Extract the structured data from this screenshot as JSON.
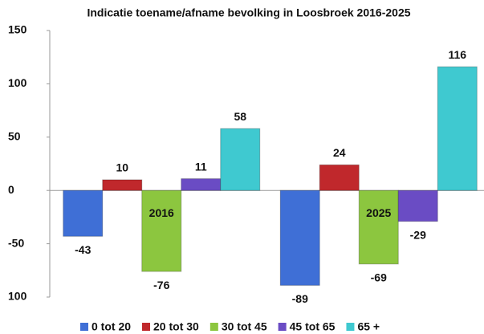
{
  "chart_data": {
    "type": "bar",
    "title": "Indicatie toename/afname bevolking in Loosbroek 2016-2025",
    "categories": [
      "2016",
      "2025"
    ],
    "series": [
      {
        "name": "0 tot 20",
        "color": "#3f6fd6",
        "values": [
          -43,
          -89
        ]
      },
      {
        "name": "20 tot 30",
        "color": "#c0282c",
        "values": [
          10,
          24
        ]
      },
      {
        "name": "30 tot 45",
        "color": "#8cc63f",
        "values": [
          -76,
          -69
        ]
      },
      {
        "name": "45 tot 65",
        "color": "#6a4cc4",
        "values": [
          11,
          -29
        ]
      },
      {
        "name": "65 +",
        "color": "#3fc9d0",
        "values": [
          58,
          116
        ]
      }
    ],
    "ylim": [
      -100,
      150
    ],
    "yticks": [
      {
        "value": -100,
        "label": "100"
      },
      -50,
      0,
      50,
      100,
      150
    ],
    "grid": false,
    "legend": "bottom"
  }
}
